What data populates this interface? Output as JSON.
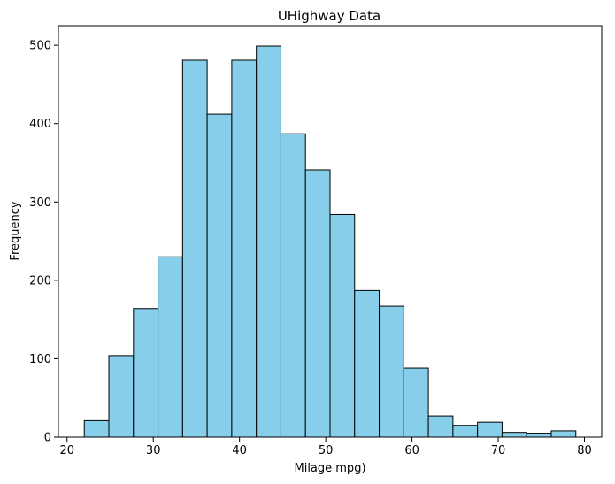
{
  "chart_data": {
    "type": "bar",
    "title": "UHighway Data",
    "xlabel": "Milage mpg)",
    "ylabel": "Frequency",
    "xlim": [
      19,
      82
    ],
    "ylim": [
      0,
      525
    ],
    "xticks": [
      20,
      30,
      40,
      50,
      60,
      70,
      80
    ],
    "yticks": [
      0,
      100,
      200,
      300,
      400,
      500
    ],
    "bin_edges": [
      22.0,
      24.85,
      27.7,
      30.55,
      33.4,
      36.25,
      39.1,
      41.95,
      44.8,
      47.65,
      50.5,
      53.35,
      56.2,
      59.05,
      61.9,
      64.75,
      67.6,
      70.45,
      73.3,
      76.15,
      79.0
    ],
    "values": [
      21,
      104,
      164,
      230,
      481,
      412,
      481,
      499,
      387,
      341,
      284,
      187,
      167,
      88,
      27,
      15,
      19,
      6,
      5,
      8
    ],
    "bar_color": "#87CEEB",
    "edge_color": "#000000",
    "grid": false,
    "legend": "none"
  }
}
